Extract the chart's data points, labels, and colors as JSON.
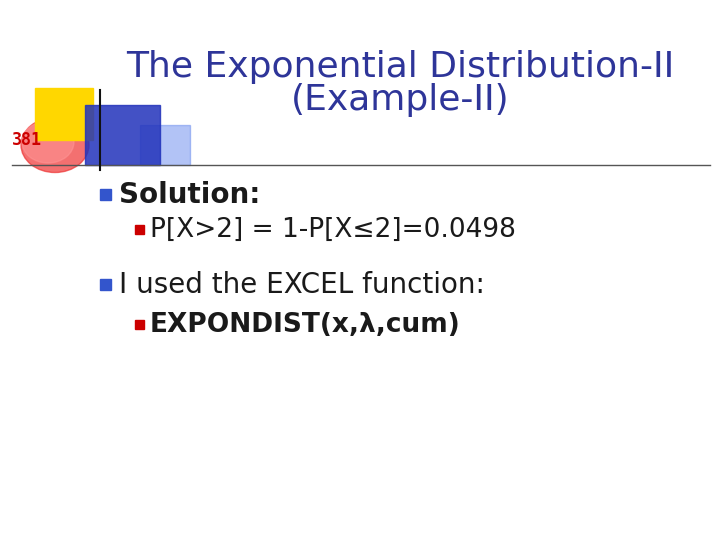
{
  "title_line1": "The Exponential Distribution-II",
  "title_line2": "(Example-II)",
  "title_color": "#2E3599",
  "title_fontsize": 26,
  "slide_number": "381",
  "slide_number_color": "#CC0000",
  "background_color": "#FFFFFF",
  "separator_line_color": "#555555",
  "bullet1_text": "Solution:",
  "bullet1_color": "#1A1A1A",
  "bullet1_marker_color": "#3355CC",
  "bullet1_fontsize": 20,
  "sub_bullet1_text": "P[X>2] = 1-P[X≤2]=0.0498",
  "sub_bullet1_color": "#1A1A1A",
  "sub_bullet1_marker_color": "#CC0000",
  "sub_bullet1_fontsize": 19,
  "bullet2_text": "I used the EXCEL function:",
  "bullet2_color": "#1A1A1A",
  "bullet2_marker_color": "#3355CC",
  "bullet2_fontsize": 20,
  "sub_bullet2_bold_text": "EXPONDIST(x,λ,cum)",
  "sub_bullet2_color": "#1A1A1A",
  "sub_bullet2_marker_color": "#CC0000",
  "sub_bullet2_fontsize": 19,
  "decor_yellow": "#FFD700",
  "decor_blue_dark": "#2233BB",
  "decor_blue_light": "#6688EE",
  "decor_red": "#EE3333",
  "decor_pink": "#FF9999"
}
